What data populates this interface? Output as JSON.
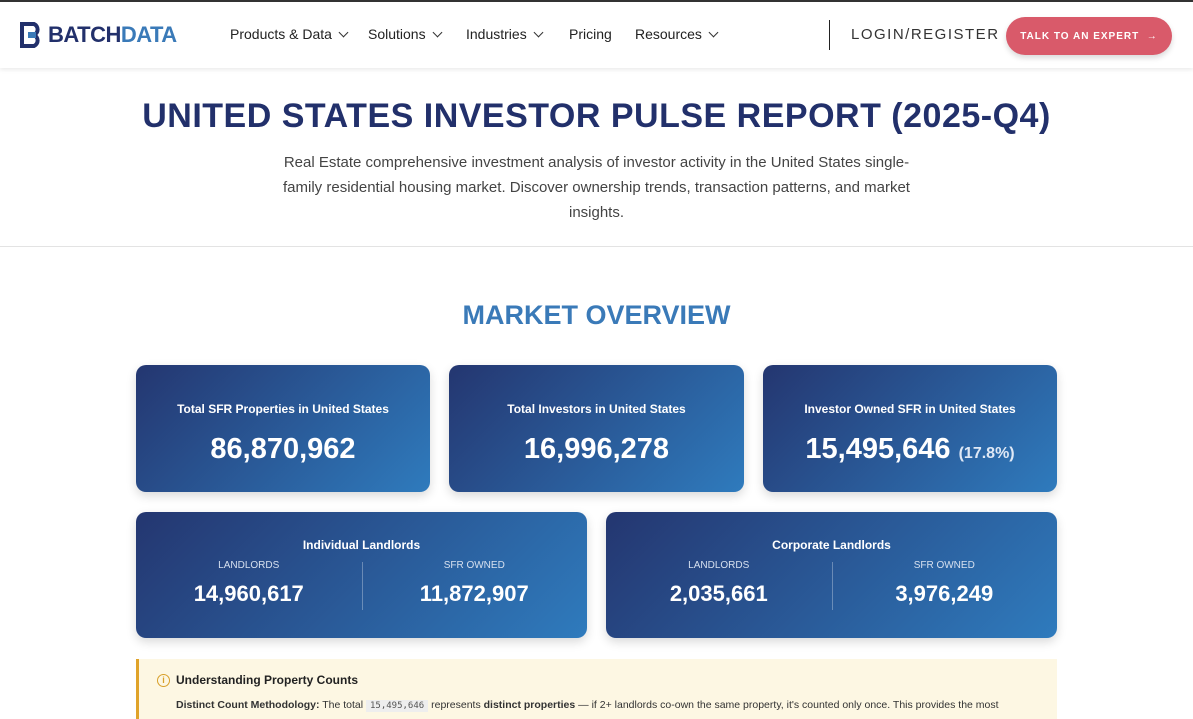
{
  "nav": {
    "logo": [
      "BATCH",
      "DATA"
    ],
    "menu": [
      "Products & Data",
      "Solutions",
      "Industries",
      "Pricing",
      "Resources"
    ],
    "login": "LOGIN/REGISTER",
    "cta": "TALK TO AN EXPERT"
  },
  "header": {
    "title": "UNITED STATES INVESTOR PULSE REPORT (2025-Q4)",
    "subtitle": "Real Estate comprehensive investment analysis of investor activity in the United States single-family residential housing market. Discover ownership trends, transaction patterns, and market insights."
  },
  "overview": {
    "heading": "MARKET OVERVIEW",
    "cards": [
      {
        "label": "Total SFR Properties in United States",
        "value": "86,870,962"
      },
      {
        "label": "Total Investors in United States",
        "value": "16,996,278"
      },
      {
        "label": "Investor Owned SFR in United States",
        "value": "15,495,646",
        "percent": "(17.8%)"
      }
    ],
    "panels": [
      {
        "title": "Individual Landlords",
        "columns": [
          {
            "label": "LANDLORDS",
            "value": "14,960,617"
          },
          {
            "label": "SFR OWNED",
            "value": "11,872,907"
          }
        ]
      },
      {
        "title": "Corporate Landlords",
        "columns": [
          {
            "label": "LANDLORDS",
            "value": "2,035,661"
          },
          {
            "label": "SFR OWNED",
            "value": "3,976,249"
          }
        ]
      }
    ]
  },
  "note": {
    "title": "Understanding Property Counts",
    "body": [
      "Distinct Count Methodology:",
      "The total",
      "15,495,646",
      "represents",
      "distinct properties",
      "— if 2+ landlords co-own the same property, it's counted only once. This provides the most"
    ]
  }
}
